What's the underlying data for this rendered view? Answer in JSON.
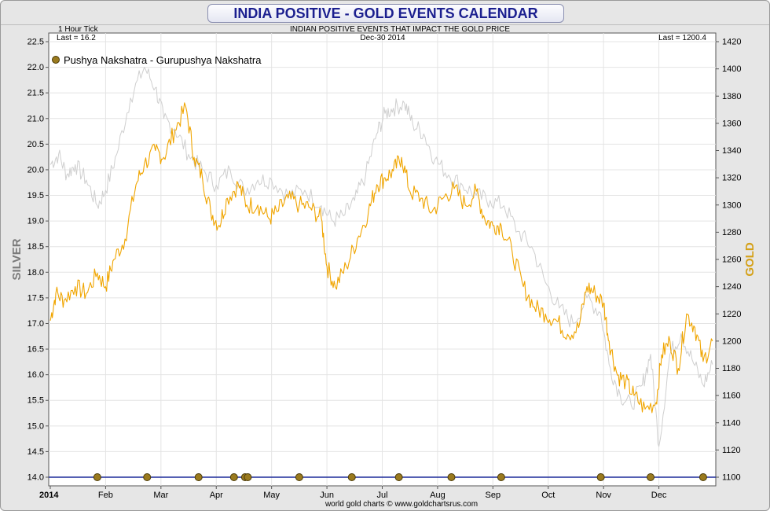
{
  "title": "INDIA POSITIVE - GOLD EVENTS CALENDAR",
  "subtitle": "INDIAN POSITIVE EVENTS THAT IMPACT THE GOLD PRICE",
  "tick_label": "1 Hour Tick",
  "left_last": "Last = 16.2",
  "right_last": "Last = 1200.4",
  "date_label": "Dec-30  2014",
  "legend_label": "Pushya Nakshatra - Gurupushya Nakshatra",
  "left_axis_title": "SILVER",
  "right_axis_title": "GOLD",
  "footer": "world gold charts © www.goldchartsrus.com",
  "chart_data": {
    "type": "line",
    "title": "INDIA POSITIVE - GOLD EVENTS CALENDAR",
    "xlabel": "",
    "x_range": [
      0,
      12
    ],
    "x_ticks": [
      {
        "label": "2014",
        "value": 0
      },
      {
        "label": "Feb",
        "value": 1
      },
      {
        "label": "Mar",
        "value": 2
      },
      {
        "label": "Apr",
        "value": 3
      },
      {
        "label": "May",
        "value": 4
      },
      {
        "label": "Jun",
        "value": 5
      },
      {
        "label": "Jul",
        "value": 6
      },
      {
        "label": "Aug",
        "value": 7
      },
      {
        "label": "Sep",
        "value": 8
      },
      {
        "label": "Oct",
        "value": 9
      },
      {
        "label": "Nov",
        "value": 10
      },
      {
        "label": "Dec",
        "value": 11
      }
    ],
    "left_axis": {
      "label": "SILVER",
      "min": 14.0,
      "max": 22.5,
      "ticks": [
        "14.0",
        "14.5",
        "15.0",
        "15.5",
        "16.0",
        "16.5",
        "17.0",
        "17.5",
        "18.0",
        "18.5",
        "19.0",
        "19.5",
        "20.0",
        "20.5",
        "21.0",
        "21.5",
        "22.0",
        "22.5"
      ]
    },
    "right_axis": {
      "label": "GOLD",
      "min": 1100,
      "max": 1420,
      "ticks": [
        "1100",
        "1120",
        "1140",
        "1160",
        "1180",
        "1200",
        "1220",
        "1240",
        "1260",
        "1280",
        "1300",
        "1320",
        "1340",
        "1360",
        "1380",
        "1400",
        "1420"
      ]
    },
    "series": [
      {
        "name": "Silver",
        "axis": "left",
        "color": "#cfcfcf",
        "x": [
          0,
          0.15,
          0.3,
          0.45,
          0.65,
          0.85,
          1.0,
          1.2,
          1.45,
          1.7,
          1.9,
          2.05,
          2.25,
          2.5,
          2.75,
          3.0,
          3.25,
          3.5,
          3.75,
          4.0,
          4.3,
          4.6,
          4.9,
          5.1,
          5.3,
          5.5,
          5.7,
          5.9,
          6.05,
          6.2,
          6.4,
          6.55,
          6.75,
          6.95,
          7.2,
          7.45,
          7.7,
          7.95,
          8.2,
          8.45,
          8.7,
          8.95,
          9.2,
          9.45,
          9.7,
          9.95,
          10.1,
          10.3,
          10.5,
          10.7,
          10.85,
          11.0,
          11.2,
          11.4,
          11.6,
          11.8,
          11.97
        ],
        "values": [
          20.1,
          20.3,
          19.9,
          20.1,
          19.8,
          19.3,
          19.6,
          20.3,
          21.4,
          22.0,
          21.6,
          21.0,
          20.8,
          20.3,
          20.0,
          19.7,
          20.0,
          19.6,
          19.8,
          19.8,
          19.5,
          19.6,
          19.3,
          19.0,
          19.1,
          19.4,
          19.9,
          20.7,
          21.1,
          21.2,
          21.3,
          20.9,
          20.7,
          20.2,
          19.9,
          19.7,
          19.5,
          19.4,
          19.3,
          18.8,
          18.5,
          17.8,
          17.3,
          17.0,
          17.5,
          17.2,
          16.2,
          15.6,
          15.4,
          15.8,
          16.4,
          14.6,
          16.4,
          16.8,
          16.3,
          15.8,
          16.2
        ]
      },
      {
        "name": "Gold",
        "axis": "right",
        "color": "#f0a500",
        "x": [
          0,
          0.1,
          0.25,
          0.45,
          0.65,
          0.85,
          1.0,
          1.15,
          1.35,
          1.55,
          1.7,
          1.9,
          2.05,
          2.25,
          2.45,
          2.6,
          2.75,
          2.9,
          3.05,
          3.2,
          3.4,
          3.55,
          3.75,
          3.95,
          4.1,
          4.3,
          4.5,
          4.7,
          4.9,
          5.0,
          5.15,
          5.35,
          5.55,
          5.75,
          5.9,
          6.05,
          6.2,
          6.35,
          6.5,
          6.7,
          6.9,
          7.1,
          7.3,
          7.5,
          7.7,
          7.85,
          8.0,
          8.15,
          8.35,
          8.55,
          8.75,
          8.95,
          9.15,
          9.35,
          9.55,
          9.7,
          9.85,
          10.0,
          10.1,
          10.25,
          10.4,
          10.55,
          10.75,
          10.95,
          11.05,
          11.2,
          11.35,
          11.5,
          11.65,
          11.8,
          11.97
        ],
        "values": [
          1215,
          1235,
          1230,
          1240,
          1235,
          1250,
          1240,
          1260,
          1275,
          1315,
          1330,
          1340,
          1335,
          1355,
          1372,
          1335,
          1320,
          1295,
          1285,
          1305,
          1315,
          1300,
          1300,
          1290,
          1295,
          1305,
          1300,
          1298,
          1290,
          1255,
          1240,
          1255,
          1275,
          1295,
          1315,
          1320,
          1325,
          1335,
          1310,
          1305,
          1295,
          1305,
          1312,
          1300,
          1310,
          1290,
          1285,
          1285,
          1265,
          1240,
          1225,
          1220,
          1215,
          1205,
          1210,
          1240,
          1235,
          1228,
          1200,
          1175,
          1170,
          1160,
          1150,
          1155,
          1190,
          1200,
          1180,
          1220,
          1210,
          1185,
          1200
        ]
      }
    ],
    "events": {
      "name": "Pushya Nakshatra - Gurupushya Nakshatra",
      "value": 14.0,
      "x": [
        0.85,
        1.75,
        2.68,
        3.32,
        3.52,
        3.57,
        4.5,
        5.45,
        6.3,
        7.25,
        8.15,
        9.95,
        10.85,
        11.8
      ]
    }
  }
}
